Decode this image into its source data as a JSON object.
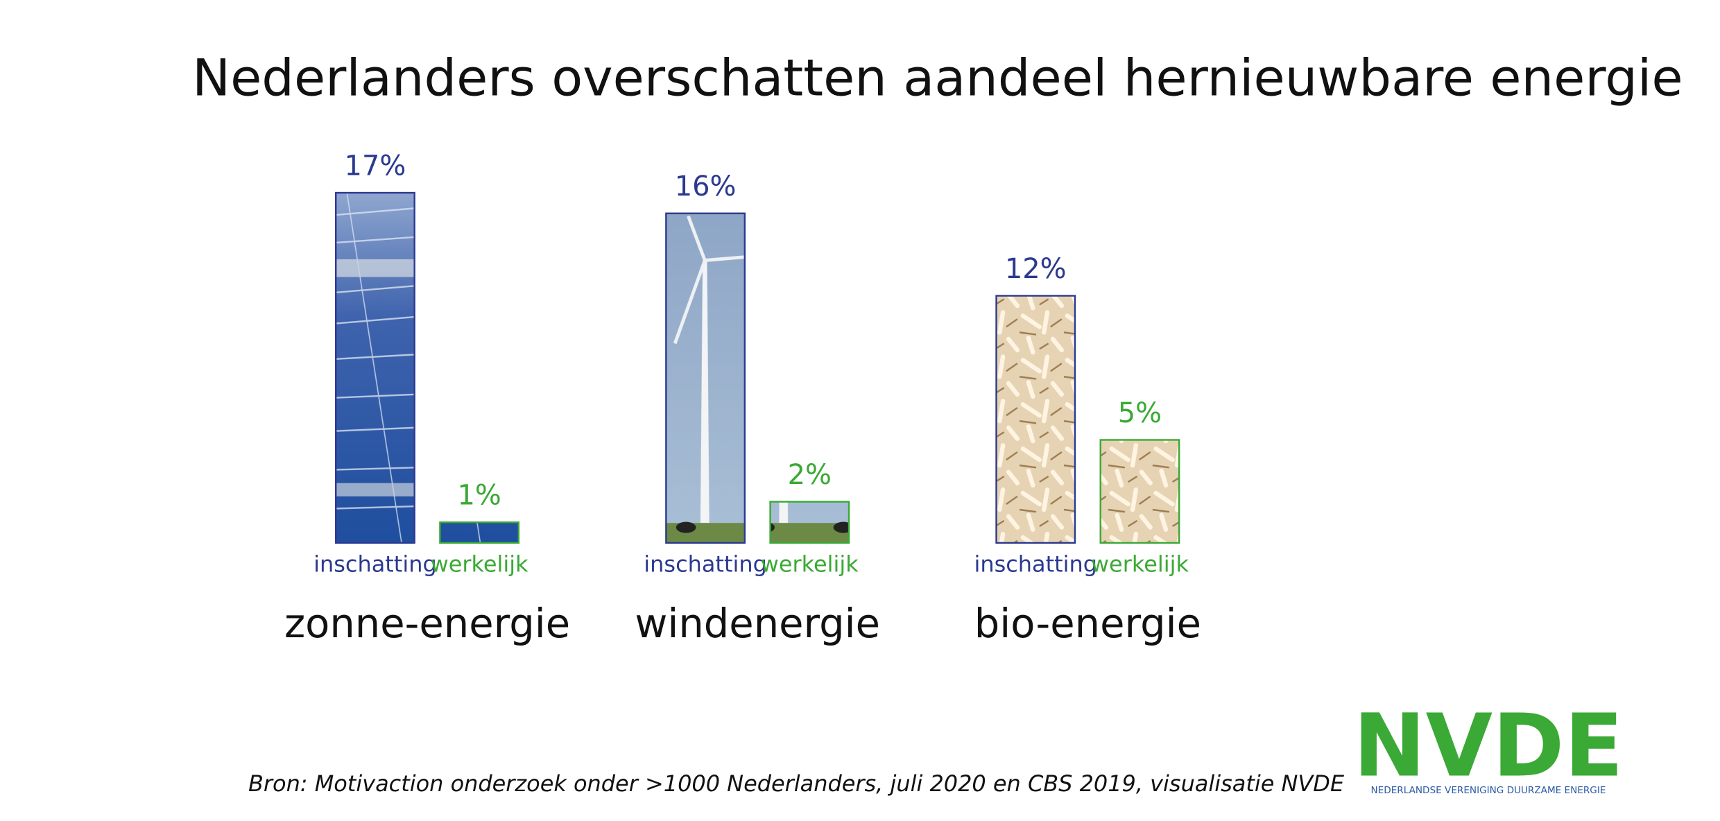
{
  "chart_data": {
    "type": "bar",
    "title": "Nederlanders overschatten aandeel hernieuwbare energie",
    "categories": [
      "zonne-energie",
      "windenergie",
      "bio-energie"
    ],
    "series": [
      {
        "name": "inschatting",
        "color": "#2b3990",
        "values": [
          17,
          16,
          12
        ],
        "value_labels": [
          "17%",
          "16%",
          "12%"
        ]
      },
      {
        "name": "werkelijk",
        "color": "#3aa935",
        "values": [
          1,
          2,
          5
        ],
        "value_labels": [
          "1%",
          "2%",
          "5%"
        ]
      }
    ],
    "source": "Bron: Motivaction onderzoek onder >1000 Nederlanders, juli 2020 en CBS 2019, visualisatie NVDE",
    "logo": {
      "name": "NVDE",
      "subtitle": "NEDERLANDSE VERENIGING DUURZAME ENERGIE"
    }
  }
}
